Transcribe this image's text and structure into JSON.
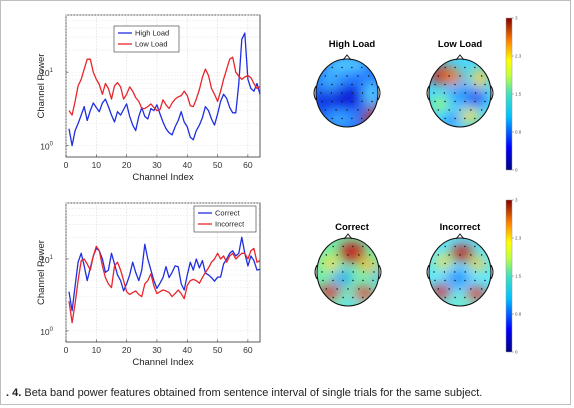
{
  "caption": {
    "prefix": ". 4.",
    "text": " Beta band power features obtained from sentence interval of single trials for the same subject."
  },
  "colors": {
    "blue": "#1f2fe0",
    "red": "#e8252b"
  },
  "colorbar_ticks": [
    "3",
    "2.3",
    "1.5",
    "0.8",
    "0"
  ],
  "chart_data": [
    {
      "type": "line",
      "xlabel": "Channel Index",
      "ylabel": "Channel Power",
      "xlim": [
        0,
        64
      ],
      "xticks": [
        "0",
        "10",
        "20",
        "30",
        "40",
        "50",
        "60"
      ],
      "ylim": [
        0.7,
        60
      ],
      "yscale": "log",
      "yticks": [
        {
          "label": "10",
          "exp": "0",
          "value": 1
        },
        {
          "label": "10",
          "exp": "1",
          "value": 10
        }
      ],
      "legend": "top-right",
      "x": [
        1,
        2,
        3,
        4,
        5,
        6,
        7,
        8,
        9,
        10,
        11,
        12,
        13,
        14,
        15,
        16,
        17,
        18,
        19,
        20,
        21,
        22,
        23,
        24,
        25,
        26,
        27,
        28,
        29,
        30,
        31,
        32,
        33,
        34,
        35,
        36,
        37,
        38,
        39,
        40,
        41,
        42,
        43,
        44,
        45,
        46,
        47,
        48,
        49,
        50,
        51,
        52,
        53,
        54,
        55,
        56,
        57,
        58,
        59,
        60,
        61,
        62,
        63,
        64
      ],
      "series": [
        {
          "name": "High Load",
          "color": "blue",
          "values": [
            1.7,
            1.0,
            1.6,
            2.0,
            2.6,
            3.4,
            2.2,
            3.0,
            3.8,
            3.3,
            2.9,
            3.8,
            4.3,
            3.4,
            2.6,
            2.1,
            2.9,
            2.6,
            3.1,
            3.7,
            2.5,
            1.9,
            1.6,
            2.5,
            3.3,
            2.5,
            2.3,
            3.2,
            3.0,
            3.6,
            2.7,
            2.1,
            1.7,
            1.5,
            1.4,
            1.8,
            2.2,
            2.9,
            2.1,
            1.8,
            1.3,
            1.2,
            1.6,
            1.9,
            2.4,
            3.4,
            3.0,
            2.3,
            1.9,
            2.7,
            4.0,
            5.0,
            4.4,
            3.3,
            2.8,
            2.8,
            7.0,
            28,
            34,
            8.0,
            6.0,
            5.5,
            7.0,
            5.0
          ]
        },
        {
          "name": "Low Load",
          "color": "red",
          "values": [
            3.0,
            2.6,
            4.0,
            6.5,
            8.0,
            11,
            15,
            15,
            10,
            8.0,
            6.8,
            5.0,
            7.0,
            6.0,
            4.3,
            6.5,
            7.2,
            6.3,
            4.3,
            5.0,
            6.3,
            5.5,
            4.5,
            4.0,
            3.2,
            3.2,
            3.4,
            3.7,
            3.3,
            3.0,
            3.1,
            4.2,
            3.6,
            3.2,
            3.8,
            4.3,
            4.6,
            4.8,
            5.5,
            4.8,
            3.5,
            3.4,
            4.3,
            5.8,
            8.5,
            11,
            9.0,
            6.0,
            5.0,
            4.0,
            5.5,
            8.0,
            11,
            15,
            16,
            10,
            8.8,
            8.0,
            8.6,
            9.0,
            8.4,
            7.0,
            6.0,
            6.4
          ]
        }
      ]
    },
    {
      "type": "line",
      "xlabel": "Channel Index",
      "ylabel": "Channel Power",
      "xlim": [
        0,
        64
      ],
      "xticks": [
        "0",
        "10",
        "20",
        "30",
        "40",
        "50",
        "60"
      ],
      "ylim": [
        0.7,
        60
      ],
      "yscale": "log",
      "yticks": [
        {
          "label": "10",
          "exp": "0",
          "value": 1
        },
        {
          "label": "10",
          "exp": "1",
          "value": 10
        }
      ],
      "legend": "top-right",
      "x": [
        1,
        2,
        3,
        4,
        5,
        6,
        7,
        8,
        9,
        10,
        11,
        12,
        13,
        14,
        15,
        16,
        17,
        18,
        19,
        20,
        21,
        22,
        23,
        24,
        25,
        26,
        27,
        28,
        29,
        30,
        31,
        32,
        33,
        34,
        35,
        36,
        37,
        38,
        39,
        40,
        41,
        42,
        43,
        44,
        45,
        46,
        47,
        48,
        49,
        50,
        51,
        52,
        53,
        54,
        55,
        56,
        57,
        58,
        59,
        60,
        61,
        62,
        63,
        64
      ],
      "series": [
        {
          "name": "Correct",
          "color": "blue",
          "values": [
            3.5,
            1.9,
            4.2,
            9.0,
            12,
            8.0,
            5.0,
            7.5,
            11,
            14,
            13,
            10,
            6.5,
            7.0,
            12,
            8.5,
            6.0,
            5.0,
            3.6,
            4.5,
            6.0,
            9.0,
            6.5,
            5.0,
            7.0,
            16,
            10,
            7.0,
            5.0,
            3.9,
            4.6,
            5.5,
            7.8,
            5.5,
            6.5,
            8.0,
            7.8,
            4.5,
            3.7,
            6.0,
            9.0,
            7.0,
            10,
            7.5,
            9.5,
            6.4,
            6.0,
            5.5,
            4.9,
            5.6,
            5.6,
            8.5,
            10,
            12,
            13,
            11,
            12,
            20,
            12,
            8.0,
            11,
            9.5,
            7.0,
            7.2
          ]
        },
        {
          "name": "Incorrect",
          "color": "red",
          "values": [
            2.6,
            1.3,
            2.4,
            5.0,
            9.5,
            10,
            8.5,
            7.0,
            11,
            15,
            13,
            8.0,
            5.5,
            4.5,
            4.0,
            8.0,
            9.0,
            7.0,
            5.0,
            3.5,
            3.2,
            3.4,
            3.6,
            3.2,
            3.0,
            4.5,
            5.0,
            6.2,
            4.2,
            3.3,
            3.5,
            3.7,
            3.6,
            3.4,
            3.0,
            3.3,
            3.7,
            3.3,
            2.8,
            4.3,
            5.0,
            5.2,
            5.0,
            4.6,
            5.5,
            6.5,
            7.5,
            9.0,
            10,
            12,
            10,
            11,
            9.0,
            11,
            12,
            10,
            11,
            12,
            12,
            10,
            13,
            14,
            9.0,
            9.5
          ]
        }
      ]
    }
  ],
  "topomaps": [
    {
      "title": "High Load"
    },
    {
      "title": "Low Load"
    },
    {
      "title": "Correct"
    },
    {
      "title": "Incorrect"
    }
  ]
}
